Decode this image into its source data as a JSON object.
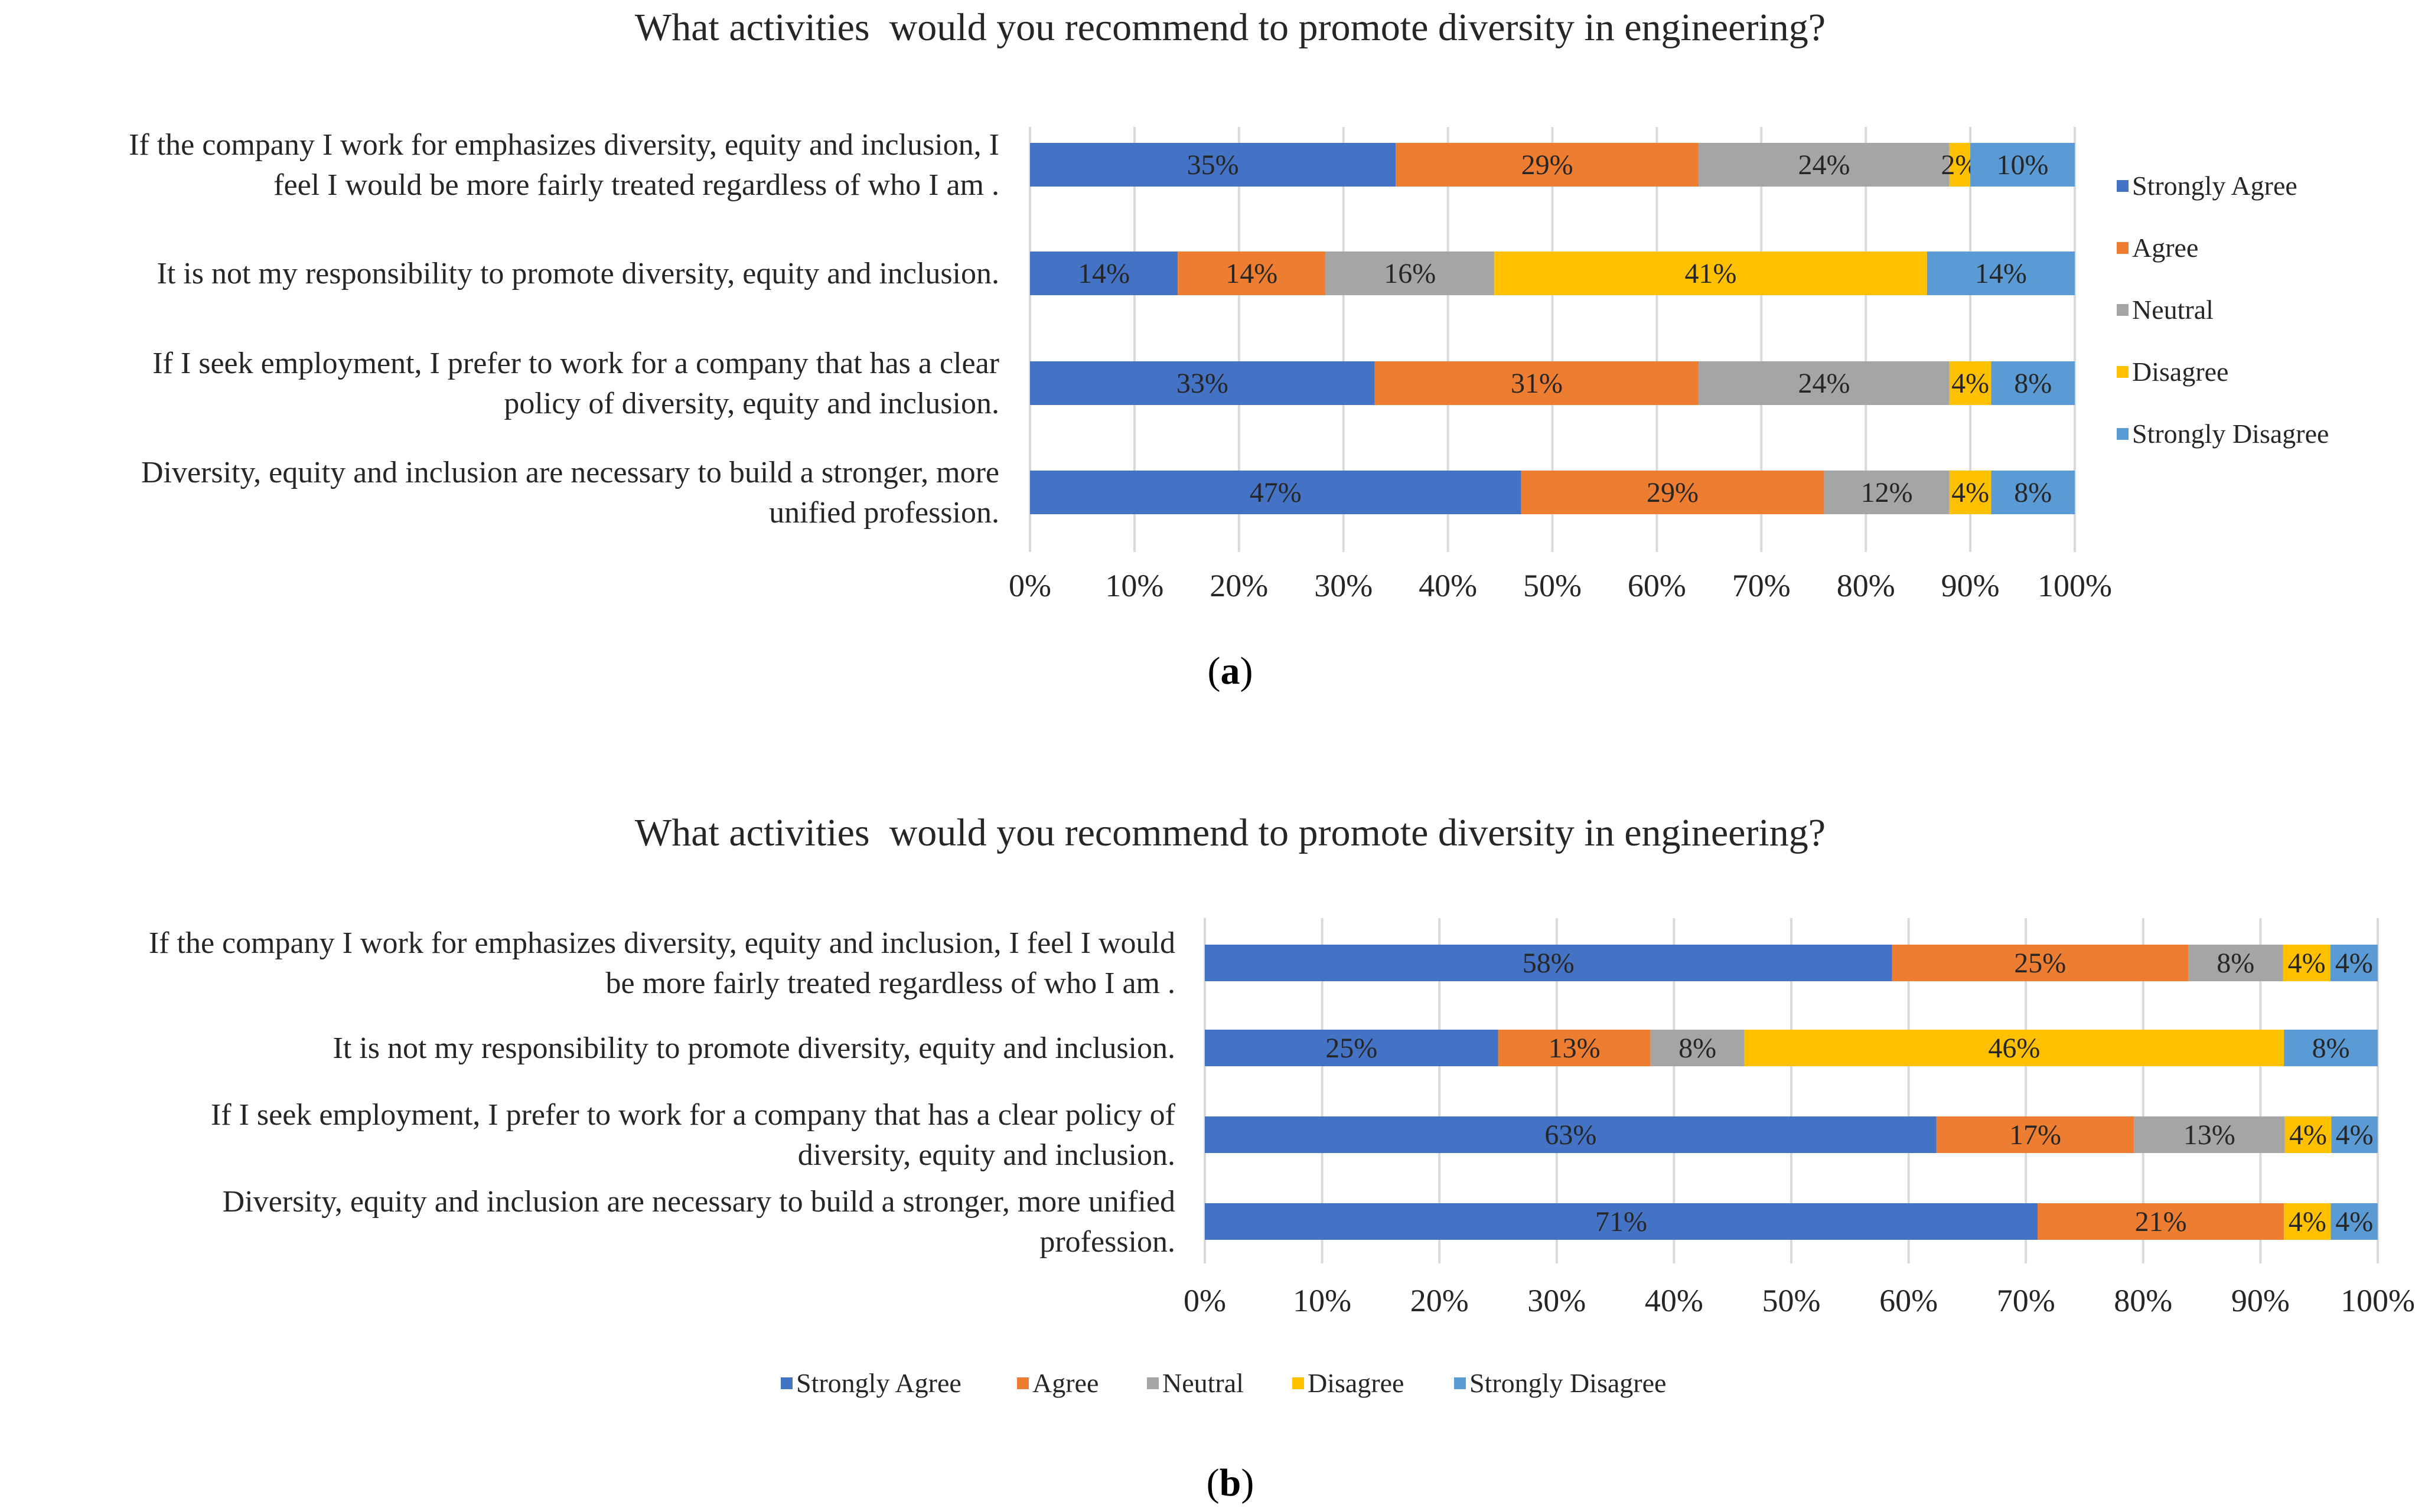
{
  "colors": {
    "strongly_agree": "#4472C4",
    "agree": "#ED7D31",
    "neutral": "#A5A5A5",
    "disagree": "#FFC000",
    "strongly_disagree": "#5B9BD5"
  },
  "chart_data": [
    {
      "type": "bar",
      "orientation": "horizontal",
      "stacked": true,
      "percent": true,
      "title": "What activities  would you recommend to promote diversity in engineering?",
      "caption_open": "(",
      "caption_letter": "a",
      "caption_close": ")",
      "legend_position": "right",
      "categories": [
        [
          "If the company I work for emphasizes diversity, equity and inclusion, I",
          "feel I would be more fairly treated regardless of who I am ."
        ],
        [
          "It is not my responsibility to promote diversity, equity and inclusion."
        ],
        [
          "If I seek employment, I prefer to work for a company that has a clear",
          "policy of diversity, equity and inclusion."
        ],
        [
          "Diversity, equity and inclusion are necessary to build a stronger, more",
          "unified profession."
        ]
      ],
      "series": [
        {
          "name": "Strongly Agree",
          "values": [
            35,
            14,
            33,
            47
          ],
          "labels": [
            "35%",
            "14%",
            "33%",
            "47%"
          ]
        },
        {
          "name": "Agree",
          "values": [
            29,
            14,
            31,
            29
          ],
          "labels": [
            "29%",
            "14%",
            "31%",
            "29%"
          ]
        },
        {
          "name": "Neutral",
          "values": [
            24,
            16,
            24,
            12
          ],
          "labels": [
            "24%",
            "16%",
            "24%",
            "12%"
          ]
        },
        {
          "name": "Disagree",
          "values": [
            2,
            41,
            4,
            4
          ],
          "labels": [
            "2%",
            "41%",
            "4%",
            "4%"
          ]
        },
        {
          "name": "Strongly Disagree",
          "values": [
            10,
            14,
            8,
            8
          ],
          "labels": [
            "10%",
            "14%",
            "8%",
            "8%"
          ]
        }
      ],
      "x_ticks": [
        "0%",
        "10%",
        "20%",
        "30%",
        "40%",
        "50%",
        "60%",
        "70%",
        "80%",
        "90%",
        "100%"
      ],
      "xlim": [
        0,
        100
      ],
      "grid": true
    },
    {
      "type": "bar",
      "orientation": "horizontal",
      "stacked": true,
      "percent": true,
      "title": "What activities  would you recommend to promote diversity in engineering?",
      "caption_open": "(",
      "caption_letter": "b",
      "caption_close": ")",
      "legend_position": "bottom",
      "categories": [
        [
          "If the company I work for emphasizes diversity, equity and inclusion, I feel I would",
          "be more fairly treated regardless of who I am ."
        ],
        [
          "It is not my responsibility to promote diversity, equity and inclusion."
        ],
        [
          "If I seek employment, I prefer to work for a company that has a clear policy of",
          "diversity, equity and inclusion."
        ],
        [
          "Diversity, equity and inclusion are necessary to build a stronger, more unified",
          "profession."
        ]
      ],
      "series": [
        {
          "name": "Strongly Agree",
          "values": [
            58,
            25,
            63,
            71
          ],
          "labels": [
            "58%",
            "25%",
            "63%",
            "71%"
          ]
        },
        {
          "name": "Agree",
          "values": [
            25,
            13,
            17,
            21
          ],
          "labels": [
            "25%",
            "13%",
            "17%",
            "21%"
          ]
        },
        {
          "name": "Neutral",
          "values": [
            8,
            8,
            13,
            0
          ],
          "labels": [
            "8%",
            "8%",
            "13%",
            ""
          ]
        },
        {
          "name": "Disagree",
          "values": [
            4,
            46,
            4,
            4
          ],
          "labels": [
            "4%",
            "46%",
            "4%",
            "4%"
          ]
        },
        {
          "name": "Strongly Disagree",
          "values": [
            4,
            8,
            4,
            4
          ],
          "labels": [
            "4%",
            "8%",
            "4%",
            "4%"
          ]
        }
      ],
      "x_ticks": [
        "0%",
        "10%",
        "20%",
        "30%",
        "40%",
        "50%",
        "60%",
        "70%",
        "80%",
        "90%",
        "100%"
      ],
      "xlim": [
        0,
        100
      ],
      "grid": true
    }
  ]
}
